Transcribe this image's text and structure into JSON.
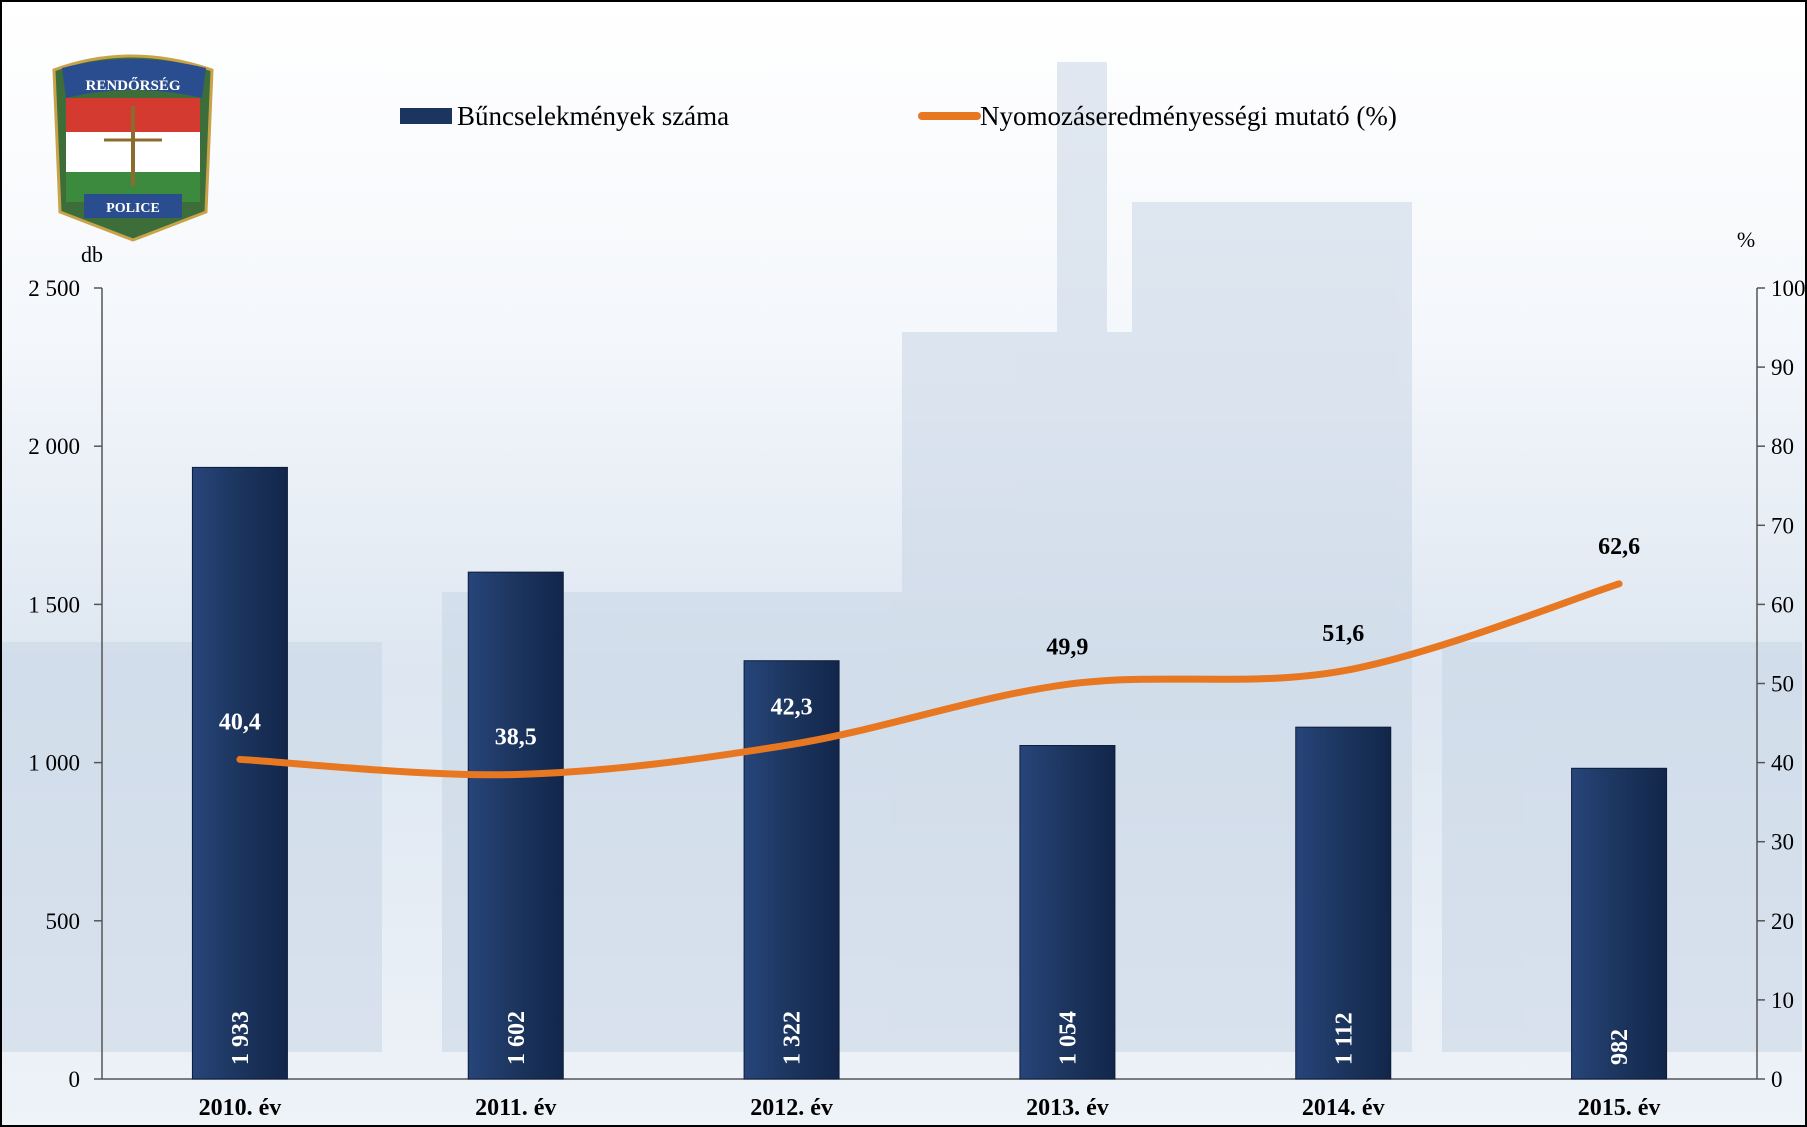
{
  "logo": {
    "top_text": "RENDŐRSÉG",
    "bottom_text": "POLICE"
  },
  "chart_data": {
    "type": "bar",
    "categories": [
      "2010. év",
      "2011. év",
      "2012. év",
      "2013. év",
      "2014. év",
      "2015. év"
    ],
    "series": [
      {
        "name": "Bűncselekmények száma",
        "type": "bar",
        "axis": "left",
        "color": "#1c355e",
        "values": [
          1933,
          1602,
          1322,
          1054,
          1112,
          982
        ],
        "labels": [
          "1 933",
          "1 602",
          "1 322",
          "1 054",
          "1 112",
          "982"
        ]
      },
      {
        "name": "Nyomozáseredményességi mutató (%)",
        "type": "line",
        "axis": "right",
        "color": "#e87722",
        "values": [
          40.4,
          38.5,
          42.3,
          49.9,
          51.6,
          62.6
        ],
        "labels": [
          "40,4",
          "38,5",
          "42,3",
          "49,9",
          "51,6",
          "62,6"
        ]
      }
    ],
    "left_axis": {
      "unit": "db",
      "range": [
        0,
        2500
      ],
      "ticks": [
        0,
        500,
        1000,
        1500,
        2000,
        2500
      ],
      "tick_labels": [
        "0",
        "500",
        "1 000",
        "1 500",
        "2 000",
        "2 500"
      ]
    },
    "right_axis": {
      "unit": "%",
      "range": [
        0,
        100
      ],
      "ticks": [
        0,
        10,
        20,
        30,
        40,
        50,
        60,
        70,
        80,
        90,
        100
      ],
      "tick_labels": [
        "0",
        "10",
        "20",
        "30",
        "40",
        "50",
        "60",
        "70",
        "80",
        "90",
        "100"
      ]
    },
    "legend": "top-center",
    "grid": false
  }
}
